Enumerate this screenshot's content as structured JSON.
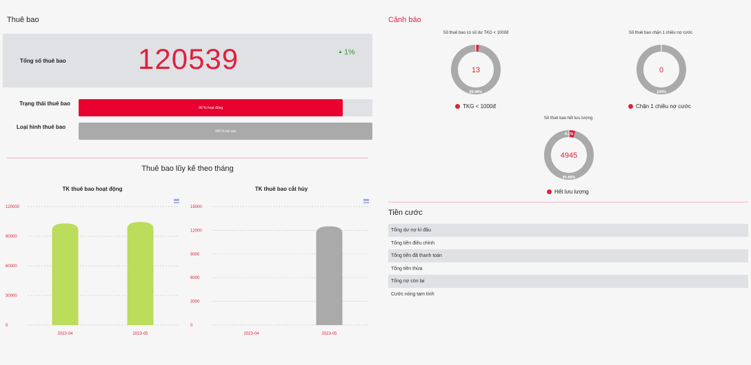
{
  "subscribers": {
    "section_title": "Thuê bao",
    "total_label": "Tổng số thuê bao",
    "total_value": "120539",
    "trend": "1%",
    "status_label": "Trạng thái thuê bao",
    "status_bar_text": "90 % hoạt động",
    "status_fraction": 0.9,
    "type_label": "Loại hình thuê bao",
    "type_bar_text": "100 % trả sau",
    "type_fraction": 1.0
  },
  "monthly": {
    "title": "Thuê bao lũy kế theo tháng"
  },
  "chart_data": [
    {
      "type": "bar",
      "title": "TK thuê bao hoạt động",
      "categories": [
        "2023-04",
        "2023-05"
      ],
      "values": [
        103000,
        104500
      ],
      "ylim": [
        0,
        120000
      ],
      "yticks": [
        "0",
        "30000",
        "60000",
        "90000",
        "120000"
      ],
      "bar_color": "#bcdc5c",
      "grid": true
    },
    {
      "type": "bar",
      "title": "TK thuê bao cắt hủy",
      "categories": [
        "2023-04",
        "2023-05"
      ],
      "values": [
        0,
        12500
      ],
      "ylim": [
        0,
        15000
      ],
      "yticks": [
        "0",
        "3000",
        "6000",
        "9000",
        "12000",
        "15000"
      ],
      "bar_color": "#aaaaaa",
      "grid": true
    }
  ],
  "alerts": {
    "section_title": "Cảnh báo",
    "gauges": [
      {
        "title": "Số thuê bao có số dư TKG < 1000đ",
        "center_value": "13",
        "fraction": 0.0002,
        "main_label": "99.98%",
        "small_label": "",
        "legend": "TKG < 1000đ"
      },
      {
        "title": "Số thuê bao chặn 1 chiều nợ cước",
        "center_value": "0",
        "fraction": 0,
        "main_label": "100%",
        "small_label": "",
        "legend": "Chặn 1 chiều nợ cước"
      },
      {
        "title": "Số thuê bao hết lưu lượng",
        "center_value": "4945",
        "fraction": 0.041,
        "main_label": "95.89%",
        "small_label": "4.1%",
        "legend": "Hết lưu lượng"
      }
    ],
    "colors": {
      "highlight": "#e0203c",
      "rest": "#aaaaaa"
    }
  },
  "fees": {
    "section_title": "Tiền cước",
    "rows": [
      "Tổng dư nợ kì đầu",
      "Tổng tiền điều chỉnh",
      "Tổng tiền đã thanh toán",
      "Tổng tiền thừa",
      "Tổng nợ còn lại",
      "Cước nóng tạm tính"
    ]
  },
  "colors": {
    "accent": "#e0203c",
    "positive": "#3a9a3a",
    "panel": "#dfe1e5"
  }
}
